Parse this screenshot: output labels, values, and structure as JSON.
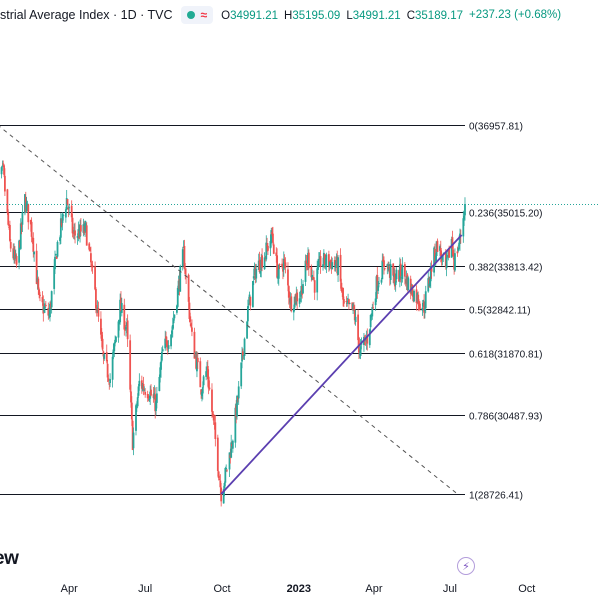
{
  "header": {
    "title": "strial Average Index · 1D · TVC",
    "wave_symbol": "≈",
    "ohlc": [
      {
        "k": "O",
        "v": "34991.21"
      },
      {
        "k": "H",
        "v": "35195.09"
      },
      {
        "k": "L",
        "v": "34991.21"
      },
      {
        "k": "C",
        "v": "35189.17"
      }
    ],
    "change": "+237.23 (+0.68%)"
  },
  "logo_text": "ew",
  "colors": {
    "up": "#26a69a",
    "down": "#ef5350",
    "fib_line": "#131722",
    "trendline": "#5b3fb0",
    "dashed_line": "#555555",
    "last_price_line": "#26a69a",
    "lightning": "#7e57c2"
  },
  "icons": {
    "flash": "lightning-icon"
  },
  "chart_data": {
    "type": "candlestick",
    "x_axis_labels": [
      "Apr",
      "Jul",
      "Oct",
      "2023",
      "Apr",
      "Jul",
      "Oct"
    ],
    "x_axis_dates": [
      "2022-04-01",
      "2022-07-01",
      "2022-10-01",
      "2023-01-01",
      "2023-04-01",
      "2023-07-01",
      "2023-10-01"
    ],
    "visible_date_range": [
      "2022-01-01",
      "2023-12-31"
    ],
    "y_visible_range": [
      27700,
      38400
    ],
    "last_price": 35189.17,
    "fibonacci_retracement": [
      {
        "ratio": "0",
        "price": 36957.81
      },
      {
        "ratio": "0.236",
        "price": 35015.2
      },
      {
        "ratio": "0.382",
        "price": 33813.42
      },
      {
        "ratio": "0.5",
        "price": 32842.11
      },
      {
        "ratio": "0.618",
        "price": 31870.81
      },
      {
        "ratio": "0.786",
        "price": 30487.93
      },
      {
        "ratio": "1",
        "price": 28726.41
      }
    ],
    "ascending_trendline": {
      "start": {
        "date": "2022-09-30",
        "price": 28726.41
      },
      "end": {
        "date": "2023-07-15",
        "price": 34500
      }
    },
    "descending_dashed_line": {
      "start": {
        "date": "2022-01-05",
        "price": 36957.81
      },
      "end": {
        "date": "2023-07-10",
        "price": 28726.41
      }
    },
    "close_path": [
      [
        "2022-01-03",
        35600
      ],
      [
        "2022-01-12",
        35900
      ],
      [
        "2022-01-20",
        34300
      ],
      [
        "2022-01-28",
        33800
      ],
      [
        "2022-02-07",
        35300
      ],
      [
        "2022-02-16",
        34500
      ],
      [
        "2022-02-24",
        33000
      ],
      [
        "2022-03-08",
        32700
      ],
      [
        "2022-03-18",
        34300
      ],
      [
        "2022-03-29",
        35300
      ],
      [
        "2022-04-06",
        34500
      ],
      [
        "2022-04-21",
        34600
      ],
      [
        "2022-05-02",
        33200
      ],
      [
        "2022-05-12",
        31700
      ],
      [
        "2022-05-20",
        31300
      ],
      [
        "2022-06-01",
        32900
      ],
      [
        "2022-06-09",
        32400
      ],
      [
        "2022-06-16",
        29900
      ],
      [
        "2022-06-24",
        31200
      ],
      [
        "2022-07-06",
        31000
      ],
      [
        "2022-07-14",
        30700
      ],
      [
        "2022-07-22",
        31900
      ],
      [
        "2022-08-02",
        32400
      ],
      [
        "2022-08-16",
        34100
      ],
      [
        "2022-08-26",
        32200
      ],
      [
        "2022-09-06",
        31100
      ],
      [
        "2022-09-13",
        31500
      ],
      [
        "2022-09-22",
        30100
      ],
      [
        "2022-09-30",
        28750
      ],
      [
        "2022-10-07",
        29300
      ],
      [
        "2022-10-13",
        29900
      ],
      [
        "2022-10-21",
        31000
      ],
      [
        "2022-10-31",
        32700
      ],
      [
        "2022-11-10",
        33700
      ],
      [
        "2022-11-22",
        34100
      ],
      [
        "2022-11-30",
        34500
      ],
      [
        "2022-12-07",
        33600
      ],
      [
        "2022-12-14",
        33900
      ],
      [
        "2022-12-22",
        33000
      ],
      [
        "2023-01-03",
        33200
      ],
      [
        "2023-01-12",
        34000
      ],
      [
        "2023-01-20",
        33400
      ],
      [
        "2023-01-27",
        33900
      ],
      [
        "2023-02-08",
        33900
      ],
      [
        "2023-02-17",
        33800
      ],
      [
        "2023-02-24",
        32900
      ],
      [
        "2023-03-08",
        32800
      ],
      [
        "2023-03-15",
        31900
      ],
      [
        "2023-03-24",
        32200
      ],
      [
        "2023-04-04",
        33400
      ],
      [
        "2023-04-14",
        33900
      ],
      [
        "2023-04-25",
        33500
      ],
      [
        "2023-05-05",
        33700
      ],
      [
        "2023-05-15",
        33300
      ],
      [
        "2023-05-31",
        32900
      ],
      [
        "2023-06-09",
        33800
      ],
      [
        "2023-06-16",
        34300
      ],
      [
        "2023-06-26",
        33700
      ],
      [
        "2023-07-03",
        34400
      ],
      [
        "2023-07-06",
        33900
      ],
      [
        "2023-07-13",
        34400
      ],
      [
        "2023-07-19",
        35190
      ]
    ]
  }
}
